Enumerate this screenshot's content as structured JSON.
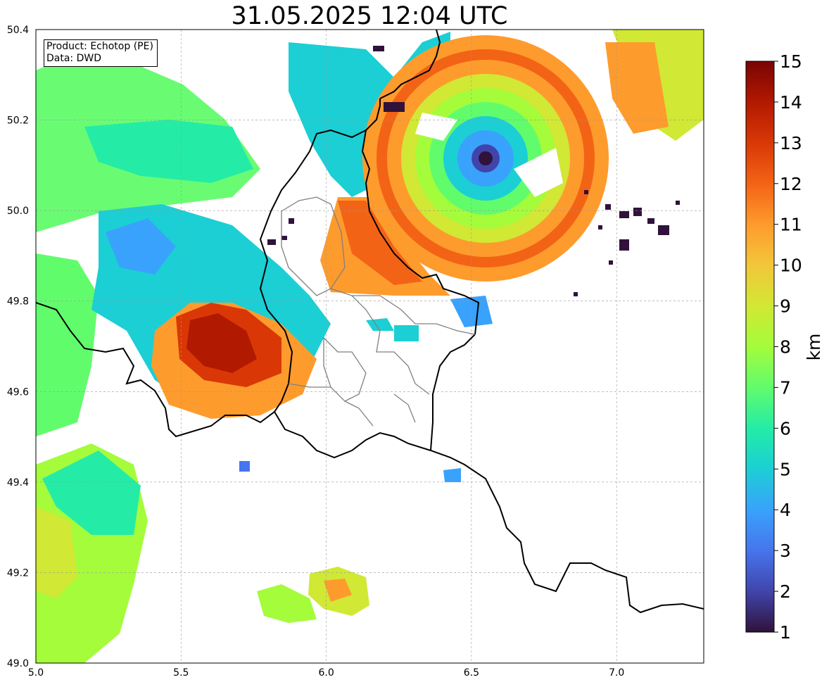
{
  "title": "31.05.2025 12:04 UTC",
  "info_box": {
    "product_line": "Product: Echotop (PE)",
    "data_line": "Data: DWD"
  },
  "map": {
    "lon_range": [
      5.0,
      7.3
    ],
    "lat_range": [
      49.0,
      50.4
    ],
    "x_ticks": [
      "5.0",
      "5.5",
      "6.0",
      "6.5",
      "7.0"
    ],
    "y_ticks": [
      "49.0",
      "49.2",
      "49.4",
      "49.6",
      "49.8",
      "50.0",
      "50.2",
      "50.4"
    ],
    "gridlines": true,
    "border_color": "#000000",
    "district_color": "#808080"
  },
  "colorbar": {
    "label": "km",
    "min": 1,
    "max": 15,
    "ticks": [
      "1",
      "2",
      "3",
      "4",
      "5",
      "6",
      "7",
      "8",
      "9",
      "10",
      "11",
      "12",
      "13",
      "14",
      "15"
    ],
    "colormap": [
      "#30123b",
      "#4145ab",
      "#4675ed",
      "#39a2fc",
      "#1bcfd4",
      "#24eca6",
      "#61fc6c",
      "#a4fc3b",
      "#d1e834",
      "#f3c63a",
      "#fe9b2d",
      "#f36315",
      "#d93806",
      "#b11901",
      "#7a0403"
    ]
  }
}
